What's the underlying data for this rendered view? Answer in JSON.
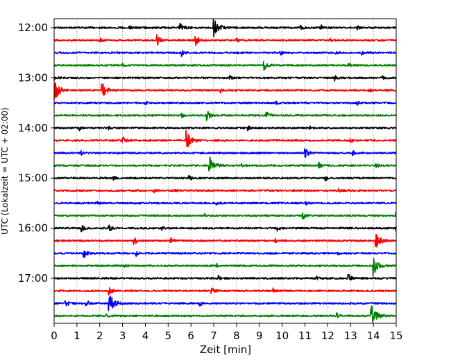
{
  "chart_data": {
    "type": "line",
    "xlabel": "Zeit  [min]",
    "ylabel": "UTC (Lokalzeit = UTC + 02:00)",
    "xlim": [
      0,
      15
    ],
    "x_ticks": [
      "0",
      "1",
      "2",
      "3",
      "4",
      "5",
      "6",
      "7",
      "8",
      "9",
      "10",
      "11",
      "12",
      "13",
      "14",
      "15"
    ],
    "y_tick_labels": [
      "12:00",
      "13:00",
      "14:00",
      "15:00",
      "16:00",
      "17:00"
    ],
    "grid": "vertical dotted at each minute",
    "trace_colors": [
      "#000000",
      "#ff0000",
      "#0000ff",
      "#008000"
    ],
    "traces": [
      {
        "time": "12:00",
        "color_index": 0,
        "events": [
          [
            5.5,
            0.5
          ],
          [
            7.0,
            1.0
          ],
          [
            3.3,
            0.3
          ],
          [
            10.8,
            0.2
          ],
          [
            11.7,
            0.25
          ],
          [
            13.3,
            0.15
          ]
        ]
      },
      {
        "time": "12:15",
        "color_index": 1,
        "events": [
          [
            4.5,
            0.5
          ],
          [
            6.2,
            0.5
          ],
          [
            2.0,
            0.2
          ],
          [
            8.0,
            0.2
          ],
          [
            12.1,
            0.2
          ]
        ]
      },
      {
        "time": "12:30",
        "color_index": 2,
        "events": [
          [
            5.6,
            0.3
          ],
          [
            9.9,
            0.3
          ],
          [
            12.3,
            0.2
          ],
          [
            13.5,
            0.15
          ]
        ]
      },
      {
        "time": "12:45",
        "color_index": 3,
        "events": [
          [
            9.2,
            0.5
          ],
          [
            12.9,
            0.2
          ],
          [
            3.0,
            0.15
          ]
        ]
      },
      {
        "time": "13:00",
        "color_index": 0,
        "events": [
          [
            0.0,
            0.3
          ],
          [
            12.3,
            0.25
          ],
          [
            14.4,
            0.2
          ],
          [
            7.7,
            0.15
          ]
        ]
      },
      {
        "time": "13:15",
        "color_index": 1,
        "events": [
          [
            0.0,
            1.0
          ],
          [
            2.1,
            0.8
          ],
          [
            7.3,
            0.2
          ],
          [
            13.8,
            0.2
          ]
        ]
      },
      {
        "time": "13:30",
        "color_index": 2,
        "events": [
          [
            4.0,
            0.15
          ],
          [
            9.7,
            0.15
          ],
          [
            13.3,
            0.15
          ]
        ]
      },
      {
        "time": "13:45",
        "color_index": 3,
        "events": [
          [
            6.7,
            0.5
          ],
          [
            9.3,
            0.4
          ],
          [
            5.6,
            0.2
          ]
        ]
      },
      {
        "time": "14:00",
        "color_index": 0,
        "events": [
          [
            1.1,
            0.2
          ],
          [
            2.4,
            0.2
          ],
          [
            8.5,
            0.2
          ],
          [
            11.2,
            0.2
          ]
        ]
      },
      {
        "time": "14:15",
        "color_index": 1,
        "events": [
          [
            3.0,
            0.4
          ],
          [
            5.8,
            0.9
          ],
          [
            13.0,
            0.2
          ]
        ]
      },
      {
        "time": "14:30",
        "color_index": 2,
        "events": [
          [
            11.0,
            0.5
          ],
          [
            1.2,
            0.2
          ],
          [
            13.1,
            0.2
          ]
        ]
      },
      {
        "time": "14:45",
        "color_index": 3,
        "events": [
          [
            6.8,
            0.9
          ],
          [
            11.6,
            0.3
          ],
          [
            14.1,
            0.3
          ],
          [
            8.2,
            0.2
          ]
        ]
      },
      {
        "time": "15:00",
        "color_index": 0,
        "events": [
          [
            5.9,
            0.25
          ],
          [
            11.9,
            0.2
          ],
          [
            2.6,
            0.15
          ]
        ]
      },
      {
        "time": "15:15",
        "color_index": 1,
        "events": [
          [
            5.3,
            0.2
          ],
          [
            12.5,
            0.15
          ],
          [
            4.4,
            0.15
          ]
        ]
      },
      {
        "time": "15:30",
        "color_index": 2,
        "events": [
          [
            11.0,
            0.2
          ],
          [
            7.1,
            0.2
          ],
          [
            1.9,
            0.15
          ]
        ]
      },
      {
        "time": "15:45",
        "color_index": 3,
        "events": [
          [
            10.9,
            0.3
          ],
          [
            15.0,
            0.3
          ],
          [
            6.6,
            0.15
          ]
        ]
      },
      {
        "time": "16:00",
        "color_index": 0,
        "events": [
          [
            1.2,
            0.3
          ],
          [
            2.4,
            0.3
          ],
          [
            4.7,
            0.2
          ],
          [
            9.8,
            0.2
          ],
          [
            15.0,
            0.2
          ]
        ]
      },
      {
        "time": "16:15",
        "color_index": 1,
        "events": [
          [
            3.5,
            0.4
          ],
          [
            5.1,
            0.3
          ],
          [
            14.1,
            0.8
          ],
          [
            9.7,
            0.15
          ]
        ]
      },
      {
        "time": "16:30",
        "color_index": 2,
        "events": [
          [
            1.3,
            0.5
          ],
          [
            3.6,
            0.2
          ],
          [
            12.4,
            0.2
          ]
        ]
      },
      {
        "time": "16:45",
        "color_index": 3,
        "events": [
          [
            14.0,
            0.9
          ],
          [
            3.1,
            0.2
          ],
          [
            7.1,
            0.2
          ]
        ]
      },
      {
        "time": "17:00",
        "color_index": 0,
        "events": [
          [
            12.9,
            0.4
          ],
          [
            7.2,
            0.25
          ],
          [
            11.5,
            0.15
          ]
        ]
      },
      {
        "time": "17:15",
        "color_index": 1,
        "events": [
          [
            2.4,
            0.4
          ],
          [
            6.9,
            0.4
          ],
          [
            9.6,
            0.2
          ]
        ]
      },
      {
        "time": "17:30",
        "color_index": 2,
        "events": [
          [
            2.4,
            1.0
          ],
          [
            0.5,
            0.4
          ],
          [
            1.4,
            0.35
          ],
          [
            6.4,
            0.2
          ]
        ]
      },
      {
        "time": "17:45",
        "color_index": 3,
        "events": [
          [
            13.9,
            1.0
          ],
          [
            12.4,
            0.2
          ],
          [
            2.3,
            0.15
          ]
        ]
      }
    ]
  }
}
